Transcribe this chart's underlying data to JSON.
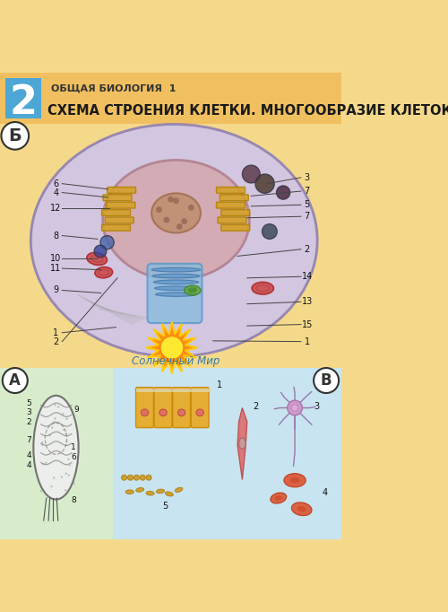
{
  "title_small": "ОБЩАЯ БИОЛОГИЯ  1",
  "title_main": "СХЕМА СТРОЕНИЯ КЛЕТКИ. МНОГООБРАЗИЕ КЛЕТОК",
  "number": "2",
  "bg_color": "#f5d98b",
  "header_bg": "#f0c060",
  "number_bg": "#4da6d4",
  "fig_width": 5.0,
  "fig_height": 6.82,
  "dpi": 100,
  "watermark": "Солнечный Мир",
  "section_B_label": "Б",
  "section_A_label": "А",
  "section_V_label": "В"
}
